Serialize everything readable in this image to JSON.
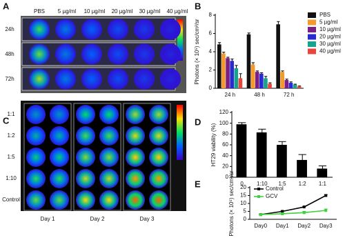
{
  "panel_labels": [
    "A",
    "B",
    "C",
    "D",
    "E"
  ],
  "panel_a": {
    "columns": [
      "PBS",
      "5 µg/ml",
      "10 µg/ml",
      "20 µg/ml",
      "30 µg/ml",
      "40 µg/ml"
    ],
    "rows": [
      "24h",
      "48h",
      "72h"
    ]
  },
  "panel_c": {
    "rows": [
      "1:1",
      "1:2",
      "1:5",
      "1:10",
      "Control"
    ],
    "columns": [
      "Day 1",
      "Day 2",
      "Day 3"
    ]
  },
  "chart_data": [
    {
      "type": "bar",
      "ylabel": "Photons (× 10⁵) sec/cm²/sr",
      "categories": [
        "24 h",
        "48 h",
        "72 h"
      ],
      "series": [
        {
          "name": "PBS",
          "color": "#111111",
          "values": [
            4.8,
            5.9,
            7.0
          ],
          "errors": [
            0.2,
            0.15,
            0.3
          ]
        },
        {
          "name": "5 µg/ml",
          "color": "#f39a2c",
          "values": [
            3.8,
            2.6,
            1.8
          ],
          "errors": [
            0.15,
            0.2,
            0.1
          ]
        },
        {
          "name": "10 µg/ml",
          "color": "#7a1f86",
          "values": [
            3.3,
            1.8,
            0.9
          ],
          "errors": [
            0.1,
            0.1,
            0.1
          ]
        },
        {
          "name": "20 µg/ml",
          "color": "#2a2ad0",
          "values": [
            3.0,
            1.6,
            0.6
          ],
          "errors": [
            0.2,
            0.1,
            0.1
          ]
        },
        {
          "name": "30 µg/ml",
          "color": "#1aa38c",
          "values": [
            2.2,
            1.1,
            0.4
          ],
          "errors": [
            0.3,
            0.2,
            0.05
          ]
        },
        {
          "name": "40 µg/ml",
          "color": "#e8463c",
          "values": [
            1.1,
            0.5,
            0.2
          ],
          "errors": [
            0.5,
            0.1,
            0.05
          ]
        }
      ],
      "ylim": [
        0,
        8
      ],
      "yticks": [
        0,
        2,
        4,
        6,
        8
      ],
      "legend": "right"
    },
    {
      "type": "bar",
      "ylabel": "HT29 viability (%)",
      "categories": [
        "0",
        "1:10",
        "1:5",
        "1:2",
        "1:1"
      ],
      "values": [
        98,
        83,
        60,
        32,
        16
      ],
      "errors": [
        3,
        6,
        6,
        10,
        5
      ],
      "color": "#000000",
      "ylim": [
        0,
        120
      ],
      "yticks": [
        0,
        20,
        40,
        60,
        80,
        100,
        120
      ]
    },
    {
      "type": "line",
      "ylabel": "Photons (× 10⁵) sec/cm²/sr",
      "categories": [
        "Day0",
        "Day1",
        "Day2",
        "Day3"
      ],
      "series": [
        {
          "name": "Control",
          "color": "#000000",
          "values": [
            3,
            5,
            7.8,
            15
          ],
          "errors": [
            0.2,
            0.3,
            0.3,
            0.6
          ]
        },
        {
          "name": "GCV",
          "color": "#3dd13d",
          "values": [
            3,
            3.5,
            4.2,
            5.6
          ],
          "errors": [
            0.3,
            0.4,
            0.8,
            0.9
          ]
        }
      ],
      "ylim": [
        0,
        20
      ],
      "yticks": [
        0,
        5,
        10,
        15,
        20
      ],
      "legend": "upper left"
    }
  ]
}
